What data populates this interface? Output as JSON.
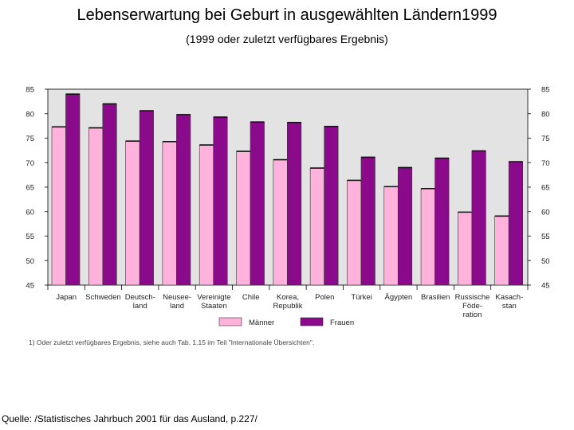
{
  "title": "Lebenserwartung bei Geburt in ausgewählten Ländern1999",
  "subtitle": "(1999 oder zuletzt verfügbares Ergebnis)",
  "source": "Quelle: /Statistisches Jahrbuch 2001 für das Ausland, p.227/",
  "footnote": "1) Oder zuletzt verfügbares Ergebnis, siehe auch Tab. 1.15 im Teil \"Internationale Übersichten\".",
  "colors": {
    "maenner": "#ffb3dc",
    "frauen": "#8b0a8b",
    "plot_bg": "#e3e3e3"
  },
  "chart_data": {
    "type": "bar",
    "categories": [
      [
        "Japan"
      ],
      [
        "Schweden"
      ],
      [
        "Deutsch-",
        "land"
      ],
      [
        "Neusee-",
        "land"
      ],
      [
        "Vereinigte",
        "Staaten"
      ],
      [
        "Chile"
      ],
      [
        "Korea,",
        "Republik"
      ],
      [
        "Polen"
      ],
      [
        "Türkei"
      ],
      [
        "Ägypten"
      ],
      [
        "Brasilien"
      ],
      [
        "Russische",
        "Föde-",
        "ration"
      ],
      [
        "Kasach-",
        "stan"
      ]
    ],
    "series": [
      {
        "name": "Männer",
        "values": [
          77.3,
          77.1,
          74.4,
          74.3,
          73.6,
          72.3,
          70.6,
          68.9,
          66.4,
          65.1,
          64.7,
          59.9,
          59.1
        ]
      },
      {
        "name": "Frauen",
        "values": [
          84.0,
          82.0,
          80.6,
          79.8,
          79.3,
          78.3,
          78.2,
          77.4,
          71.1,
          69.0,
          70.9,
          72.4,
          70.2
        ]
      }
    ],
    "ylim": [
      45,
      85
    ],
    "yticks": [
      45,
      50,
      55,
      60,
      65,
      70,
      75,
      80,
      85
    ],
    "grid": false,
    "legend": "bottom"
  }
}
